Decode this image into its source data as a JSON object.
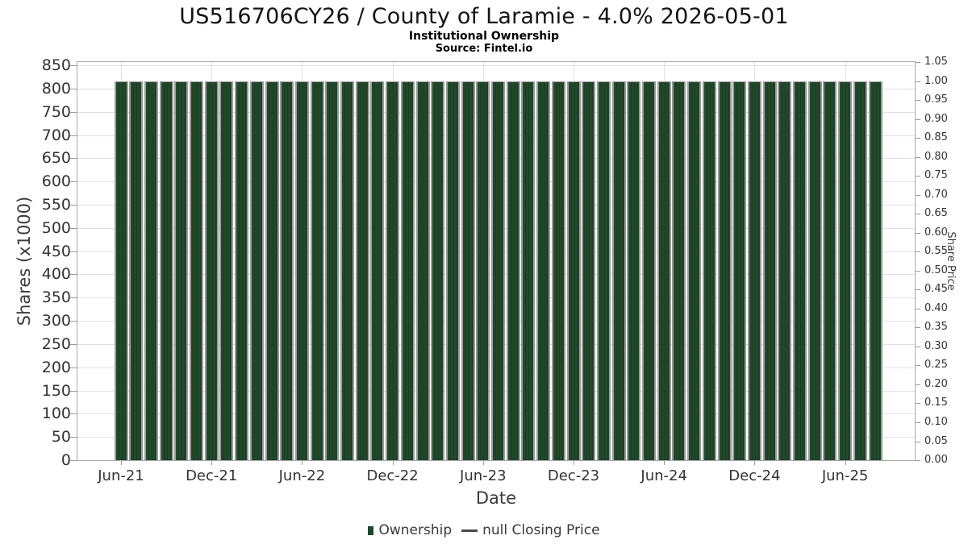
{
  "chart_data": {
    "type": "bar",
    "title": "US516706CY26 / County of Laramie - 4.0% 2026-05-01",
    "subtitle": "Institutional Ownership",
    "source": "Source: Fintel.io",
    "xlabel": "Date",
    "ylabel": "Shares (x1000)",
    "ylabel_right": "Share Price",
    "grid": true,
    "legend_position": "bottom",
    "legend": [
      {
        "label": "Ownership",
        "marker": "square",
        "color": "#21482a"
      },
      {
        "label": "null Closing Price",
        "marker": "line",
        "color": "#4a4a4a"
      }
    ],
    "x_major_ticks": [
      "Jun-21",
      "Dec-21",
      "Jun-22",
      "Dec-22",
      "Jun-23",
      "Dec-23",
      "Jun-24",
      "Dec-24",
      "Jun-25"
    ],
    "categories": [
      "Jun-21",
      "Jul-21",
      "Aug-21",
      "Sep-21",
      "Oct-21",
      "Nov-21",
      "Dec-21",
      "Jan-22",
      "Feb-22",
      "Mar-22",
      "Apr-22",
      "May-22",
      "Jun-22",
      "Jul-22",
      "Aug-22",
      "Sep-22",
      "Oct-22",
      "Nov-22",
      "Dec-22",
      "Jan-23",
      "Feb-23",
      "Mar-23",
      "Apr-23",
      "May-23",
      "Jun-23",
      "Jul-23",
      "Aug-23",
      "Sep-23",
      "Oct-23",
      "Nov-23",
      "Dec-23",
      "Jan-24",
      "Feb-24",
      "Mar-24",
      "Apr-24",
      "May-24",
      "Jun-24",
      "Jul-24",
      "Aug-24",
      "Sep-24",
      "Oct-24",
      "Nov-24",
      "Dec-24",
      "Jan-25",
      "Feb-25",
      "Mar-25",
      "Apr-25",
      "May-25",
      "Jun-25",
      "Jul-25",
      "Aug-25"
    ],
    "series": [
      {
        "name": "Ownership",
        "values": [
          815,
          815,
          815,
          815,
          815,
          815,
          815,
          815,
          815,
          815,
          815,
          815,
          815,
          815,
          815,
          815,
          815,
          815,
          815,
          815,
          815,
          815,
          815,
          815,
          815,
          815,
          815,
          815,
          815,
          815,
          815,
          815,
          815,
          815,
          815,
          815,
          815,
          815,
          815,
          815,
          815,
          815,
          815,
          815,
          815,
          815,
          815,
          815,
          815,
          815,
          815
        ]
      }
    ],
    "left_axis": {
      "min": 0,
      "max": 850,
      "step": 50,
      "tick_labels": [
        "0",
        "50",
        "100",
        "150",
        "200",
        "250",
        "300",
        "350",
        "400",
        "450",
        "500",
        "550",
        "600",
        "650",
        "700",
        "750",
        "800",
        "850"
      ]
    },
    "right_axis": {
      "min": 0,
      "max": 1.05,
      "step": 0.05,
      "tick_labels": [
        "0.00",
        "0.05",
        "0.10",
        "0.15",
        "0.20",
        "0.25",
        "0.30",
        "0.35",
        "0.40",
        "0.45",
        "0.50",
        "0.55",
        "0.60",
        "0.65",
        "0.70",
        "0.75",
        "0.80",
        "0.85",
        "0.90",
        "0.95",
        "1.00",
        "1.05"
      ]
    }
  },
  "colors": {
    "bar": "#21482a",
    "bar_stripe": "#1a3c22",
    "bar_shadow": "#9b9b9b",
    "grid": "#e1e1e1",
    "axis_border": "#a9a9a9",
    "tick_text": "#333333",
    "axis_label_text": "#3c3c3c",
    "title_text": "#141414"
  }
}
